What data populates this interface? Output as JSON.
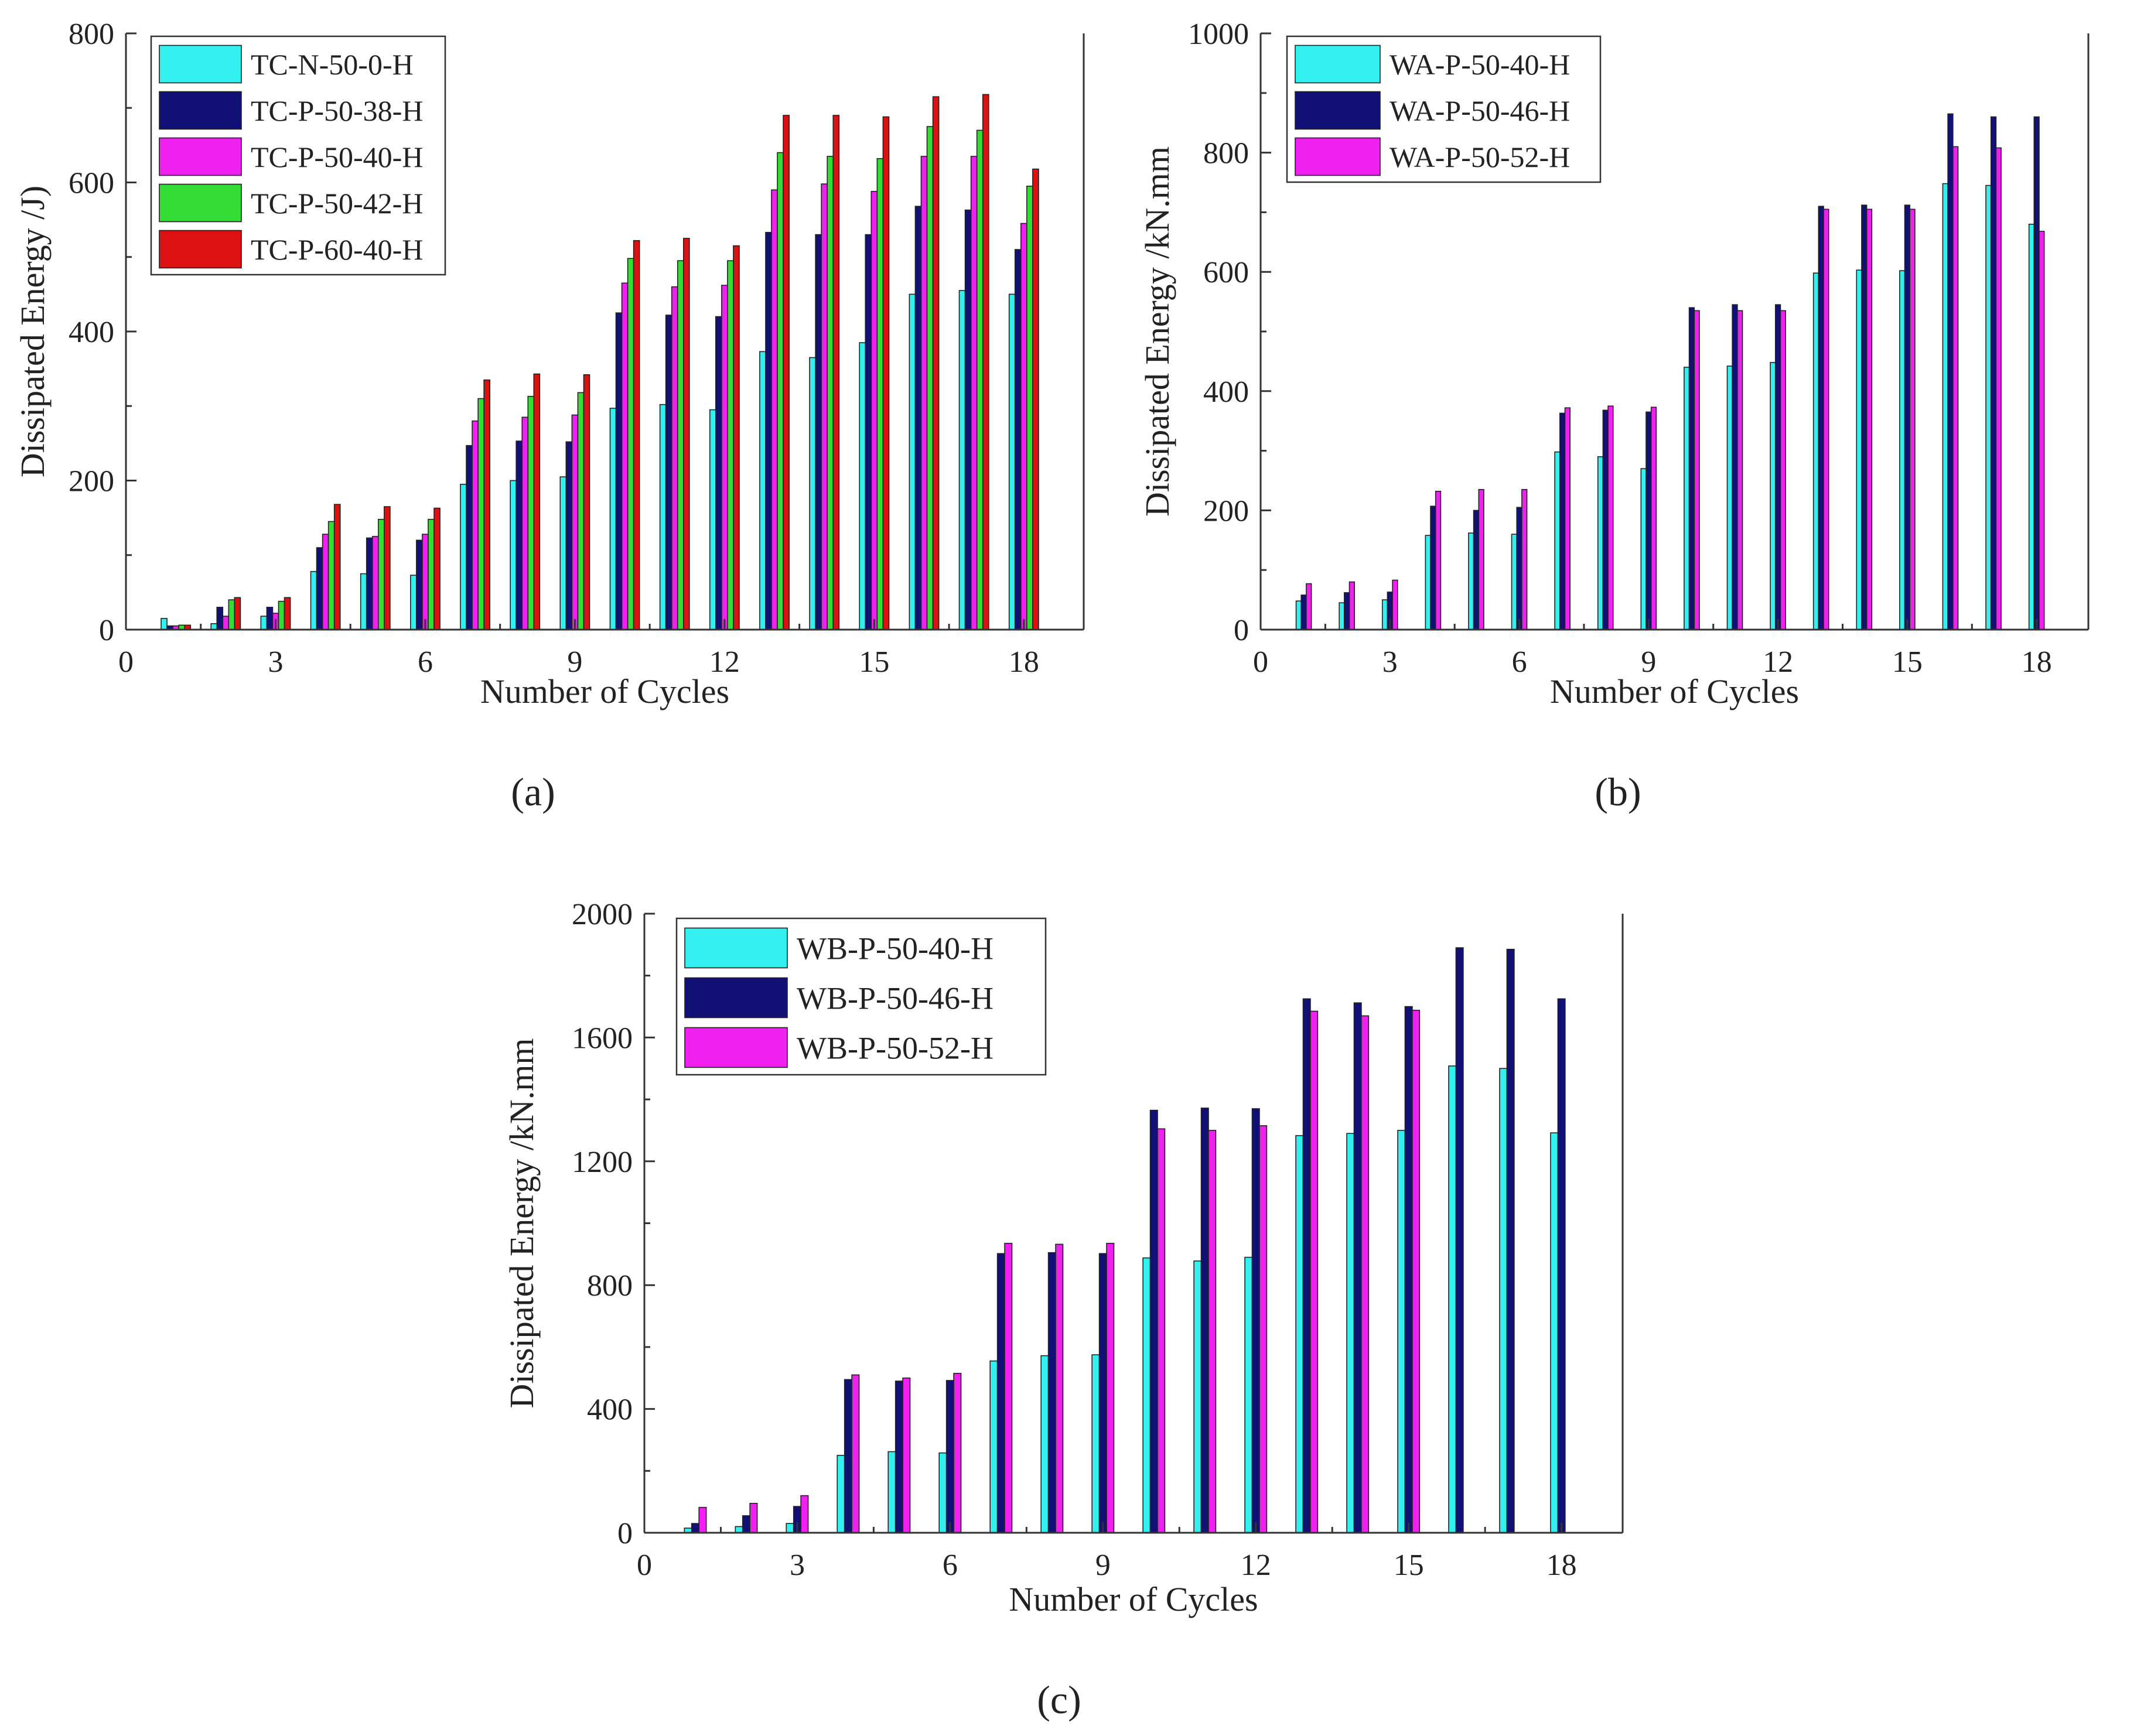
{
  "figure": {
    "panel_labels": [
      "(a)",
      "(b)",
      "(c)"
    ]
  },
  "chart_data": [
    {
      "id": "a",
      "type": "bar",
      "xlabel": "Number of Cycles",
      "ylabel": "Dissipated Energy /J)",
      "xlim": [
        0,
        19.2
      ],
      "ylim": [
        0,
        800
      ],
      "xticks": [
        0,
        3,
        6,
        9,
        12,
        15,
        18
      ],
      "yticks": [
        0,
        200,
        400,
        600,
        800
      ],
      "legend_position": "top-left",
      "x": [
        1,
        2,
        3,
        4,
        5,
        6,
        7,
        8,
        9,
        10,
        11,
        12,
        13,
        14,
        15,
        16,
        17,
        18
      ],
      "series": [
        {
          "name": "TC-N-50-0-H",
          "color": "#33f0f0",
          "values": [
            15,
            8,
            18,
            78,
            75,
            73,
            195,
            200,
            205,
            297,
            302,
            295,
            373,
            365,
            385,
            450,
            455,
            450
          ]
        },
        {
          "name": "TC-P-50-38-H",
          "color": "#101077",
          "values": [
            5,
            30,
            30,
            110,
            123,
            120,
            247,
            253,
            252,
            425,
            422,
            420,
            533,
            530,
            530,
            568,
            563,
            510
          ]
        },
        {
          "name": "TC-P-50-40-H",
          "color": "#f020f0",
          "values": [
            5,
            18,
            22,
            128,
            125,
            128,
            280,
            285,
            288,
            465,
            460,
            462,
            590,
            598,
            588,
            635,
            635,
            545
          ]
        },
        {
          "name": "TC-P-50-42-H",
          "color": "#33dd33",
          "values": [
            6,
            40,
            38,
            145,
            148,
            148,
            310,
            313,
            318,
            498,
            495,
            495,
            640,
            635,
            632,
            675,
            670,
            595
          ]
        },
        {
          "name": "TC-P-60-40-H",
          "color": "#dd1111",
          "values": [
            6,
            43,
            43,
            168,
            165,
            163,
            335,
            343,
            342,
            522,
            525,
            515,
            690,
            690,
            688,
            715,
            718,
            618
          ]
        }
      ]
    },
    {
      "id": "b",
      "type": "bar",
      "xlabel": "Number of Cycles",
      "ylabel": "Dissipated Energy /kN.mm",
      "xlim": [
        0,
        19.2
      ],
      "ylim": [
        0,
        1000
      ],
      "xticks": [
        0,
        3,
        6,
        9,
        12,
        15,
        18
      ],
      "yticks": [
        0,
        200,
        400,
        600,
        800,
        1000
      ],
      "legend_position": "top-left",
      "x": [
        1,
        2,
        3,
        4,
        5,
        6,
        7,
        8,
        9,
        10,
        11,
        12,
        13,
        14,
        15,
        16,
        17,
        18
      ],
      "series": [
        {
          "name": "WA-P-50-40-H",
          "color": "#33f0f0",
          "values": [
            48,
            45,
            50,
            158,
            162,
            160,
            298,
            290,
            270,
            440,
            442,
            448,
            598,
            603,
            602,
            748,
            745,
            680
          ]
        },
        {
          "name": "WA-P-50-46-H",
          "color": "#101077",
          "values": [
            58,
            62,
            63,
            207,
            200,
            205,
            363,
            368,
            365,
            540,
            545,
            545,
            710,
            712,
            712,
            865,
            860,
            860
          ]
        },
        {
          "name": "WA-P-50-52-H",
          "color": "#f020f0",
          "values": [
            77,
            80,
            83,
            232,
            235,
            235,
            372,
            375,
            373,
            535,
            535,
            535,
            705,
            705,
            705,
            810,
            808,
            668
          ]
        }
      ]
    },
    {
      "id": "c",
      "type": "bar",
      "xlabel": "Number of Cycles",
      "ylabel": "Dissipated Energy /kN.mm",
      "xlim": [
        0,
        19.2
      ],
      "ylim": [
        0,
        2000
      ],
      "xticks": [
        0,
        3,
        6,
        9,
        12,
        15,
        18
      ],
      "yticks": [
        0,
        400,
        800,
        1200,
        1600,
        2000
      ],
      "legend_position": "top-left",
      "x": [
        1,
        2,
        3,
        4,
        5,
        6,
        7,
        8,
        9,
        10,
        11,
        12,
        13,
        14,
        15,
        16,
        17,
        18
      ],
      "series": [
        {
          "name": "WB-P-50-40-H",
          "color": "#33f0f0",
          "values": [
            15,
            20,
            30,
            250,
            262,
            258,
            555,
            572,
            575,
            888,
            878,
            890,
            1283,
            1290,
            1300,
            1508,
            1500,
            1292
          ]
        },
        {
          "name": "WB-P-50-46-H",
          "color": "#101077",
          "values": [
            30,
            55,
            85,
            495,
            490,
            492,
            902,
            905,
            902,
            1365,
            1372,
            1370,
            1725,
            1712,
            1700,
            1890,
            1885,
            1725
          ]
        },
        {
          "name": "WB-P-50-52-H",
          "color": "#f020f0",
          "values": [
            82,
            95,
            120,
            510,
            500,
            515,
            935,
            932,
            935,
            1305,
            1300,
            1315,
            1685,
            1670,
            1688,
            null,
            null,
            null
          ]
        }
      ]
    }
  ]
}
